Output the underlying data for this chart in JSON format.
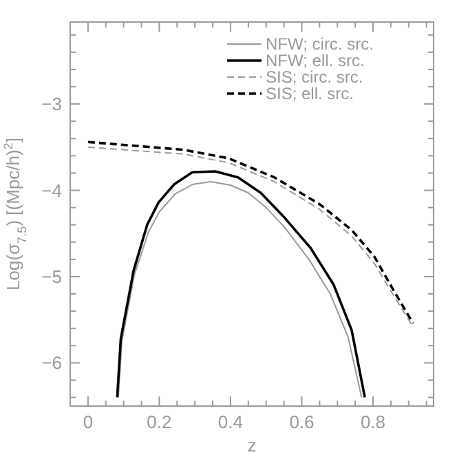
{
  "chart_data": {
    "type": "line",
    "xlabel": "z",
    "ylabel": "Log(σ$_{7.5}$)  [(Mpc/h)$^{2}$]",
    "xlim": [
      -0.05,
      0.97
    ],
    "ylim": [
      -6.5,
      -2.05
    ],
    "xticks": [
      0,
      0.2,
      0.4,
      0.6,
      0.8,
      {
        "value": 0.05,
        "label": null
      },
      {
        "value": 0.1,
        "label": null
      },
      {
        "value": 0.15,
        "label": null
      },
      {
        "value": 0.25,
        "label": null
      },
      {
        "value": 0.3,
        "label": null
      },
      {
        "value": 0.35,
        "label": null
      },
      {
        "value": 0.45,
        "label": null
      },
      {
        "value": 0.5,
        "label": null
      },
      {
        "value": 0.55,
        "label": null
      },
      {
        "value": 0.65,
        "label": null
      },
      {
        "value": 0.7,
        "label": null
      },
      {
        "value": 0.75,
        "label": null
      },
      {
        "value": 0.85,
        "label": null
      },
      {
        "value": 0.9,
        "label": null
      },
      {
        "value": 0.95,
        "label": null
      }
    ],
    "yticks": [
      {
        "value": -3,
        "label": "−3"
      },
      {
        "value": -4,
        "label": "−4"
      },
      {
        "value": -5,
        "label": "−5"
      },
      {
        "value": -6,
        "label": "−6"
      },
      {
        "value": -2.2,
        "label": null
      },
      {
        "value": -2.4,
        "label": null
      },
      {
        "value": -2.6,
        "label": null
      },
      {
        "value": -2.8,
        "label": null
      },
      {
        "value": -3.2,
        "label": null
      },
      {
        "value": -3.4,
        "label": null
      },
      {
        "value": -3.6,
        "label": null
      },
      {
        "value": -3.8,
        "label": null
      },
      {
        "value": -4.2,
        "label": null
      },
      {
        "value": -4.4,
        "label": null
      },
      {
        "value": -4.6,
        "label": null
      },
      {
        "value": -4.8,
        "label": null
      },
      {
        "value": -5.2,
        "label": null
      },
      {
        "value": -5.4,
        "label": null
      },
      {
        "value": -5.6,
        "label": null
      },
      {
        "value": -5.8,
        "label": null
      },
      {
        "value": -6.2,
        "label": null
      },
      {
        "value": -6.4,
        "label": null
      }
    ],
    "grid": false,
    "legend": "top right",
    "marker": "none",
    "series": [
      {
        "name": "NFW; circ. src.",
        "color": "#999999",
        "line_style": "solid",
        "x": [
          0.085,
          0.095,
          0.13,
          0.17,
          0.2,
          0.245,
          0.295,
          0.345,
          0.4,
          0.45,
          0.5,
          0.55,
          0.62,
          0.68,
          0.73,
          0.768
        ],
        "values": [
          -6.4,
          -5.75,
          -4.98,
          -4.48,
          -4.25,
          -4.04,
          -3.93,
          -3.9,
          -3.94,
          -4.03,
          -4.2,
          -4.42,
          -4.8,
          -5.2,
          -5.7,
          -6.4
        ]
      },
      {
        "name": "NFW; ell. src.",
        "color": "#000000",
        "line_style": "solid",
        "x": [
          0.082,
          0.092,
          0.128,
          0.166,
          0.198,
          0.242,
          0.293,
          0.357,
          0.421,
          0.485,
          0.548,
          0.625,
          0.689,
          0.74,
          0.777
        ],
        "values": [
          -6.4,
          -5.72,
          -4.93,
          -4.4,
          -4.14,
          -3.93,
          -3.79,
          -3.78,
          -3.85,
          -4.03,
          -4.3,
          -4.67,
          -5.09,
          -5.62,
          -6.4
        ]
      },
      {
        "name": "SIS; circ. src.",
        "color": "#999999",
        "line_style": "dashed",
        "x": [
          0,
          0.268,
          0.395,
          0.523,
          0.65,
          0.74,
          0.804,
          0.855,
          0.912
        ],
        "values": [
          -3.5,
          -3.58,
          -3.68,
          -3.9,
          -4.22,
          -4.53,
          -4.85,
          -5.2,
          -5.58
        ]
      },
      {
        "name": "SIS; ell. src.",
        "color": "#000000",
        "line_style": "dashed",
        "x": [
          0,
          0.268,
          0.395,
          0.523,
          0.65,
          0.74,
          0.804,
          0.855,
          0.912
        ],
        "values": [
          -3.44,
          -3.53,
          -3.63,
          -3.85,
          -4.16,
          -4.46,
          -4.77,
          -5.14,
          -5.54
        ]
      }
    ]
  }
}
